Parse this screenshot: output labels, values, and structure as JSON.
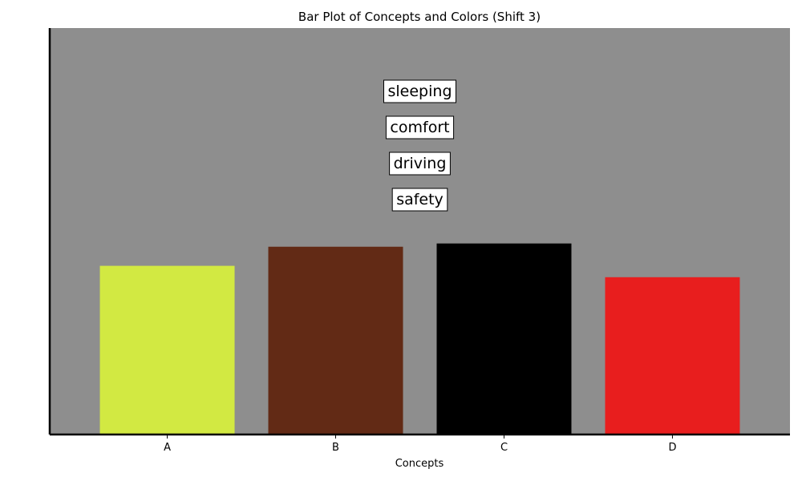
{
  "chart_data": {
    "type": "bar",
    "title": "Bar Plot of Concepts and Colors (Shift 3)",
    "xlabel": "Concepts",
    "ylabel": "",
    "categories": [
      "A",
      "B",
      "C",
      "D"
    ],
    "values": [
      0.415,
      0.462,
      0.47,
      0.387
    ],
    "bar_colors": [
      "#d2e942",
      "#622a15",
      "#000000",
      "#e81e1e"
    ],
    "ylim": [
      0,
      1
    ],
    "grid": false,
    "background_color": "#8e8e8e",
    "annotations": [
      "sleeping",
      "comfort",
      "driving",
      "safety"
    ]
  }
}
